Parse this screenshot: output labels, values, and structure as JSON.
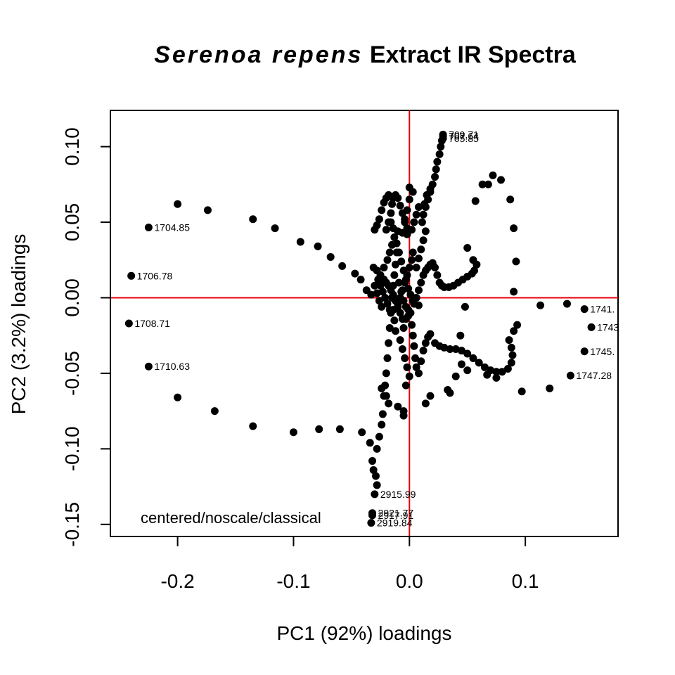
{
  "chart_data": {
    "type": "scatter",
    "title_italic": "Serenoa repens",
    "title_rest": "Extract IR Spectra",
    "xlabel": "PC1 (92%) loadings",
    "ylabel": "PC2 (3.2%) loadings",
    "annotation": "centered/noscale/classical",
    "xlim": [
      -0.258,
      0.18
    ],
    "ylim": [
      -0.158,
      0.124
    ],
    "x_ticks": [
      -0.2,
      -0.1,
      0.0,
      0.1
    ],
    "x_tick_labels": [
      "-0.2",
      "-0.1",
      "0.0",
      "0.1"
    ],
    "y_ticks": [
      -0.15,
      -0.1,
      -0.05,
      0.0,
      0.05,
      0.1
    ],
    "y_tick_labels": [
      "-0.15",
      "-0.10",
      "-0.05",
      "0.00",
      "0.05",
      "0.10"
    ],
    "reference_lines": {
      "x": 0,
      "y": 0,
      "color": "#e8000b"
    },
    "point_color": "#000000",
    "labeled_points": [
      {
        "label": "1704.85",
        "x": -0.225,
        "y": 0.0465
      },
      {
        "label": "1706.78",
        "x": -0.24,
        "y": 0.0145
      },
      {
        "label": "1708.71",
        "x": -0.242,
        "y": -0.017
      },
      {
        "label": "1710.63",
        "x": -0.225,
        "y": -0.0455
      },
      {
        "label": "1741.",
        "x": 0.151,
        "y": -0.0075
      },
      {
        "label": "1743",
        "x": 0.157,
        "y": -0.0195
      },
      {
        "label": "1745.",
        "x": 0.151,
        "y": -0.0355
      },
      {
        "label": "1747.28",
        "x": 0.139,
        "y": -0.0515
      },
      {
        "label": "2915.99",
        "x": -0.03,
        "y": -0.13
      },
      {
        "label": "2921.77",
        "x": -0.032,
        "y": -0.1425
      },
      {
        "label": "2917.91",
        "x": -0.032,
        "y": -0.144
      },
      {
        "label": "2919.84",
        "x": -0.033,
        "y": -0.149
      },
      {
        "label": "709.71",
        "x": 0.029,
        "y": 0.108
      },
      {
        "label": "707.64",
        "x": 0.029,
        "y": 0.107
      },
      {
        "label": "705.85",
        "x": 0.029,
        "y": 0.1055
      }
    ],
    "points": [
      [
        -0.2,
        0.062
      ],
      [
        -0.174,
        0.058
      ],
      [
        -0.135,
        0.052
      ],
      [
        -0.116,
        0.046
      ],
      [
        -0.094,
        0.037
      ],
      [
        -0.079,
        0.034
      ],
      [
        -0.068,
        0.027
      ],
      [
        -0.058,
        0.021
      ],
      [
        -0.047,
        0.016
      ],
      [
        -0.042,
        0.012
      ],
      [
        -0.037,
        0.005
      ],
      [
        -0.033,
        0.002
      ],
      [
        -0.2,
        -0.066
      ],
      [
        -0.168,
        -0.075
      ],
      [
        -0.135,
        -0.085
      ],
      [
        -0.1,
        -0.089
      ],
      [
        -0.078,
        -0.087
      ],
      [
        -0.06,
        -0.087
      ],
      [
        -0.041,
        -0.089
      ],
      [
        -0.034,
        -0.096
      ],
      [
        -0.032,
        -0.108
      ],
      [
        -0.031,
        -0.114
      ],
      [
        -0.029,
        -0.118
      ],
      [
        -0.028,
        -0.124
      ],
      [
        -0.028,
        -0.1
      ],
      [
        -0.026,
        -0.092
      ],
      [
        -0.024,
        -0.084
      ],
      [
        -0.023,
        -0.077
      ],
      [
        -0.022,
        -0.065
      ],
      [
        -0.021,
        -0.058
      ],
      [
        -0.02,
        -0.05
      ],
      [
        -0.019,
        -0.04
      ],
      [
        -0.018,
        -0.03
      ],
      [
        -0.017,
        -0.02
      ],
      [
        -0.016,
        -0.01
      ],
      [
        -0.015,
        0.0
      ],
      [
        -0.014,
        0.008
      ],
      [
        -0.013,
        0.015
      ],
      [
        -0.012,
        0.022
      ],
      [
        -0.011,
        0.03
      ],
      [
        -0.031,
        0.02
      ],
      [
        -0.028,
        0.018
      ],
      [
        -0.025,
        0.015
      ],
      [
        -0.022,
        0.012
      ],
      [
        -0.02,
        0.01
      ],
      [
        -0.018,
        0.008
      ],
      [
        -0.016,
        0.005
      ],
      [
        -0.014,
        0.002
      ],
      [
        -0.012,
        -0.002
      ],
      [
        -0.01,
        -0.006
      ],
      [
        -0.008,
        -0.01
      ],
      [
        -0.006,
        -0.014
      ],
      [
        -0.03,
        0.008
      ],
      [
        -0.028,
        0.003
      ],
      [
        -0.026,
        -0.002
      ],
      [
        -0.024,
        -0.006
      ],
      [
        -0.02,
        0.045
      ],
      [
        -0.018,
        0.05
      ],
      [
        -0.016,
        0.056
      ],
      [
        -0.015,
        0.062
      ],
      [
        -0.014,
        0.066
      ],
      [
        -0.012,
        0.068
      ],
      [
        -0.01,
        0.066
      ],
      [
        -0.008,
        0.061
      ],
      [
        -0.006,
        0.056
      ],
      [
        -0.004,
        0.05
      ],
      [
        -0.002,
        0.046
      ],
      [
        -0.03,
        0.045
      ],
      [
        -0.028,
        0.048
      ],
      [
        -0.026,
        0.052
      ],
      [
        -0.024,
        0.058
      ],
      [
        -0.022,
        0.063
      ],
      [
        -0.02,
        0.066
      ],
      [
        -0.018,
        0.068
      ],
      [
        -0.016,
        0.05
      ],
      [
        -0.014,
        0.046
      ],
      [
        -0.01,
        0.044
      ],
      [
        -0.006,
        0.043
      ],
      [
        -0.002,
        0.042
      ],
      [
        0.002,
        0.045
      ],
      [
        0.004,
        0.05
      ],
      [
        0.006,
        0.055
      ],
      [
        0.008,
        0.06
      ],
      [
        0.003,
        0.07
      ],
      [
        0.0,
        0.073
      ],
      [
        0.0,
        0.065
      ],
      [
        -0.002,
        0.058
      ],
      [
        -0.004,
        0.052
      ],
      [
        0.003,
        0.03
      ],
      [
        0.002,
        0.025
      ],
      [
        0.0,
        0.02
      ],
      [
        -0.002,
        0.015
      ],
      [
        -0.004,
        0.01
      ],
      [
        -0.006,
        0.005
      ],
      [
        -0.008,
        0.0
      ],
      [
        -0.01,
        -0.004
      ],
      [
        0.001,
        -0.01
      ],
      [
        0.002,
        -0.018
      ],
      [
        0.003,
        -0.025
      ],
      [
        0.004,
        -0.032
      ],
      [
        0.005,
        -0.04
      ],
      [
        0.006,
        -0.046
      ],
      [
        0.008,
        -0.05
      ],
      [
        0.01,
        -0.042
      ],
      [
        0.012,
        -0.035
      ],
      [
        0.014,
        -0.03
      ],
      [
        0.016,
        -0.026
      ],
      [
        0.018,
        -0.024
      ],
      [
        0.022,
        -0.03
      ],
      [
        0.026,
        -0.032
      ],
      [
        0.03,
        -0.033
      ],
      [
        0.035,
        -0.034
      ],
      [
        0.04,
        -0.034
      ],
      [
        0.045,
        -0.035
      ],
      [
        0.05,
        -0.037
      ],
      [
        0.055,
        -0.04
      ],
      [
        0.06,
        -0.043
      ],
      [
        0.065,
        -0.046
      ],
      [
        0.07,
        -0.048
      ],
      [
        0.075,
        -0.049
      ],
      [
        0.08,
        -0.049
      ],
      [
        0.085,
        -0.047
      ],
      [
        0.088,
        -0.043
      ],
      [
        0.089,
        -0.038
      ],
      [
        0.088,
        -0.033
      ],
      [
        0.086,
        -0.028
      ],
      [
        0.09,
        -0.022
      ],
      [
        0.093,
        -0.018
      ],
      [
        0.097,
        -0.062
      ],
      [
        0.121,
        -0.06
      ],
      [
        0.067,
        -0.051
      ],
      [
        0.075,
        -0.053
      ],
      [
        0.05,
        -0.048
      ],
      [
        0.04,
        -0.052
      ],
      [
        0.033,
        -0.061
      ],
      [
        0.035,
        -0.063
      ],
      [
        0.018,
        -0.065
      ],
      [
        0.014,
        -0.07
      ],
      [
        -0.005,
        -0.078
      ],
      [
        -0.005,
        -0.075
      ],
      [
        -0.01,
        -0.072
      ],
      [
        -0.018,
        -0.07
      ],
      [
        -0.02,
        -0.065
      ],
      [
        -0.024,
        -0.06
      ],
      [
        0.008,
        0.005
      ],
      [
        0.01,
        0.01
      ],
      [
        0.012,
        0.015
      ],
      [
        0.014,
        0.018
      ],
      [
        0.016,
        0.02
      ],
      [
        0.018,
        0.022
      ],
      [
        0.02,
        0.023
      ],
      [
        0.022,
        0.02
      ],
      [
        0.024,
        0.015
      ],
      [
        0.026,
        0.01
      ],
      [
        0.028,
        0.008
      ],
      [
        0.03,
        0.007
      ],
      [
        0.034,
        0.007
      ],
      [
        0.038,
        0.008
      ],
      [
        0.042,
        0.01
      ],
      [
        0.046,
        0.012
      ],
      [
        0.05,
        0.014
      ],
      [
        0.054,
        0.016
      ],
      [
        0.056,
        0.018
      ],
      [
        0.058,
        0.022
      ],
      [
        0.055,
        0.025
      ],
      [
        0.05,
        0.033
      ],
      [
        0.048,
        -0.006
      ],
      [
        0.044,
        -0.025
      ],
      [
        0.045,
        -0.044
      ],
      [
        0.068,
        0.075
      ],
      [
        0.079,
        0.078
      ],
      [
        0.087,
        0.065
      ],
      [
        0.09,
        0.046
      ],
      [
        0.092,
        0.024
      ],
      [
        0.09,
        0.004
      ],
      [
        0.113,
        -0.005
      ],
      [
        0.136,
        -0.004
      ],
      [
        0.057,
        0.064
      ],
      [
        0.063,
        0.075
      ],
      [
        0.072,
        0.081
      ],
      [
        0.011,
        0.05
      ],
      [
        0.012,
        0.055
      ],
      [
        0.014,
        0.06
      ],
      [
        0.016,
        0.065
      ],
      [
        0.018,
        0.07
      ],
      [
        0.02,
        0.075
      ],
      [
        0.022,
        0.08
      ],
      [
        0.023,
        0.085
      ],
      [
        0.024,
        0.09
      ],
      [
        0.026,
        0.095
      ],
      [
        0.027,
        0.1
      ],
      [
        0.028,
        0.104
      ],
      [
        0.006,
        0.02
      ],
      [
        0.008,
        0.026
      ],
      [
        0.01,
        0.032
      ],
      [
        0.012,
        0.038
      ],
      [
        0.014,
        0.044
      ],
      [
        0.013,
        0.062
      ],
      [
        0.015,
        0.068
      ],
      [
        0.018,
        0.072
      ],
      [
        -0.015,
        0.0
      ],
      [
        -0.014,
        -0.008
      ],
      [
        -0.013,
        -0.015
      ],
      [
        -0.012,
        -0.022
      ],
      [
        -0.008,
        -0.028
      ],
      [
        -0.006,
        -0.034
      ],
      [
        -0.004,
        -0.04
      ],
      [
        -0.002,
        -0.046
      ],
      [
        0.0,
        -0.052
      ],
      [
        -0.003,
        -0.058
      ],
      [
        -0.005,
        -0.02
      ],
      [
        -0.003,
        -0.014
      ],
      [
        -0.001,
        -0.008
      ],
      [
        0.004,
        -0.004
      ],
      [
        0.006,
        0.0
      ],
      [
        0.008,
        -0.005
      ],
      [
        -0.027,
        0.012
      ],
      [
        -0.025,
        0.008
      ],
      [
        -0.023,
        0.004
      ],
      [
        -0.021,
        0.0
      ],
      [
        -0.019,
        -0.004
      ],
      [
        -0.017,
        -0.008
      ],
      [
        -0.022,
        0.02
      ],
      [
        -0.019,
        0.025
      ],
      [
        -0.017,
        0.03
      ],
      [
        -0.015,
        0.035
      ],
      [
        -0.013,
        0.04
      ],
      [
        -0.011,
        0.036
      ],
      [
        -0.009,
        0.03
      ],
      [
        -0.007,
        0.024
      ],
      [
        -0.005,
        0.018
      ],
      [
        -0.003,
        0.012
      ],
      [
        -0.001,
        0.006
      ],
      [
        0.001,
        0.002
      ],
      [
        0.003,
        -0.002
      ],
      [
        -0.009,
        0.01
      ],
      [
        -0.007,
        0.004
      ],
      [
        -0.005,
        -0.002
      ],
      [
        -0.003,
        -0.006
      ],
      [
        -0.001,
        -0.012
      ]
    ]
  }
}
